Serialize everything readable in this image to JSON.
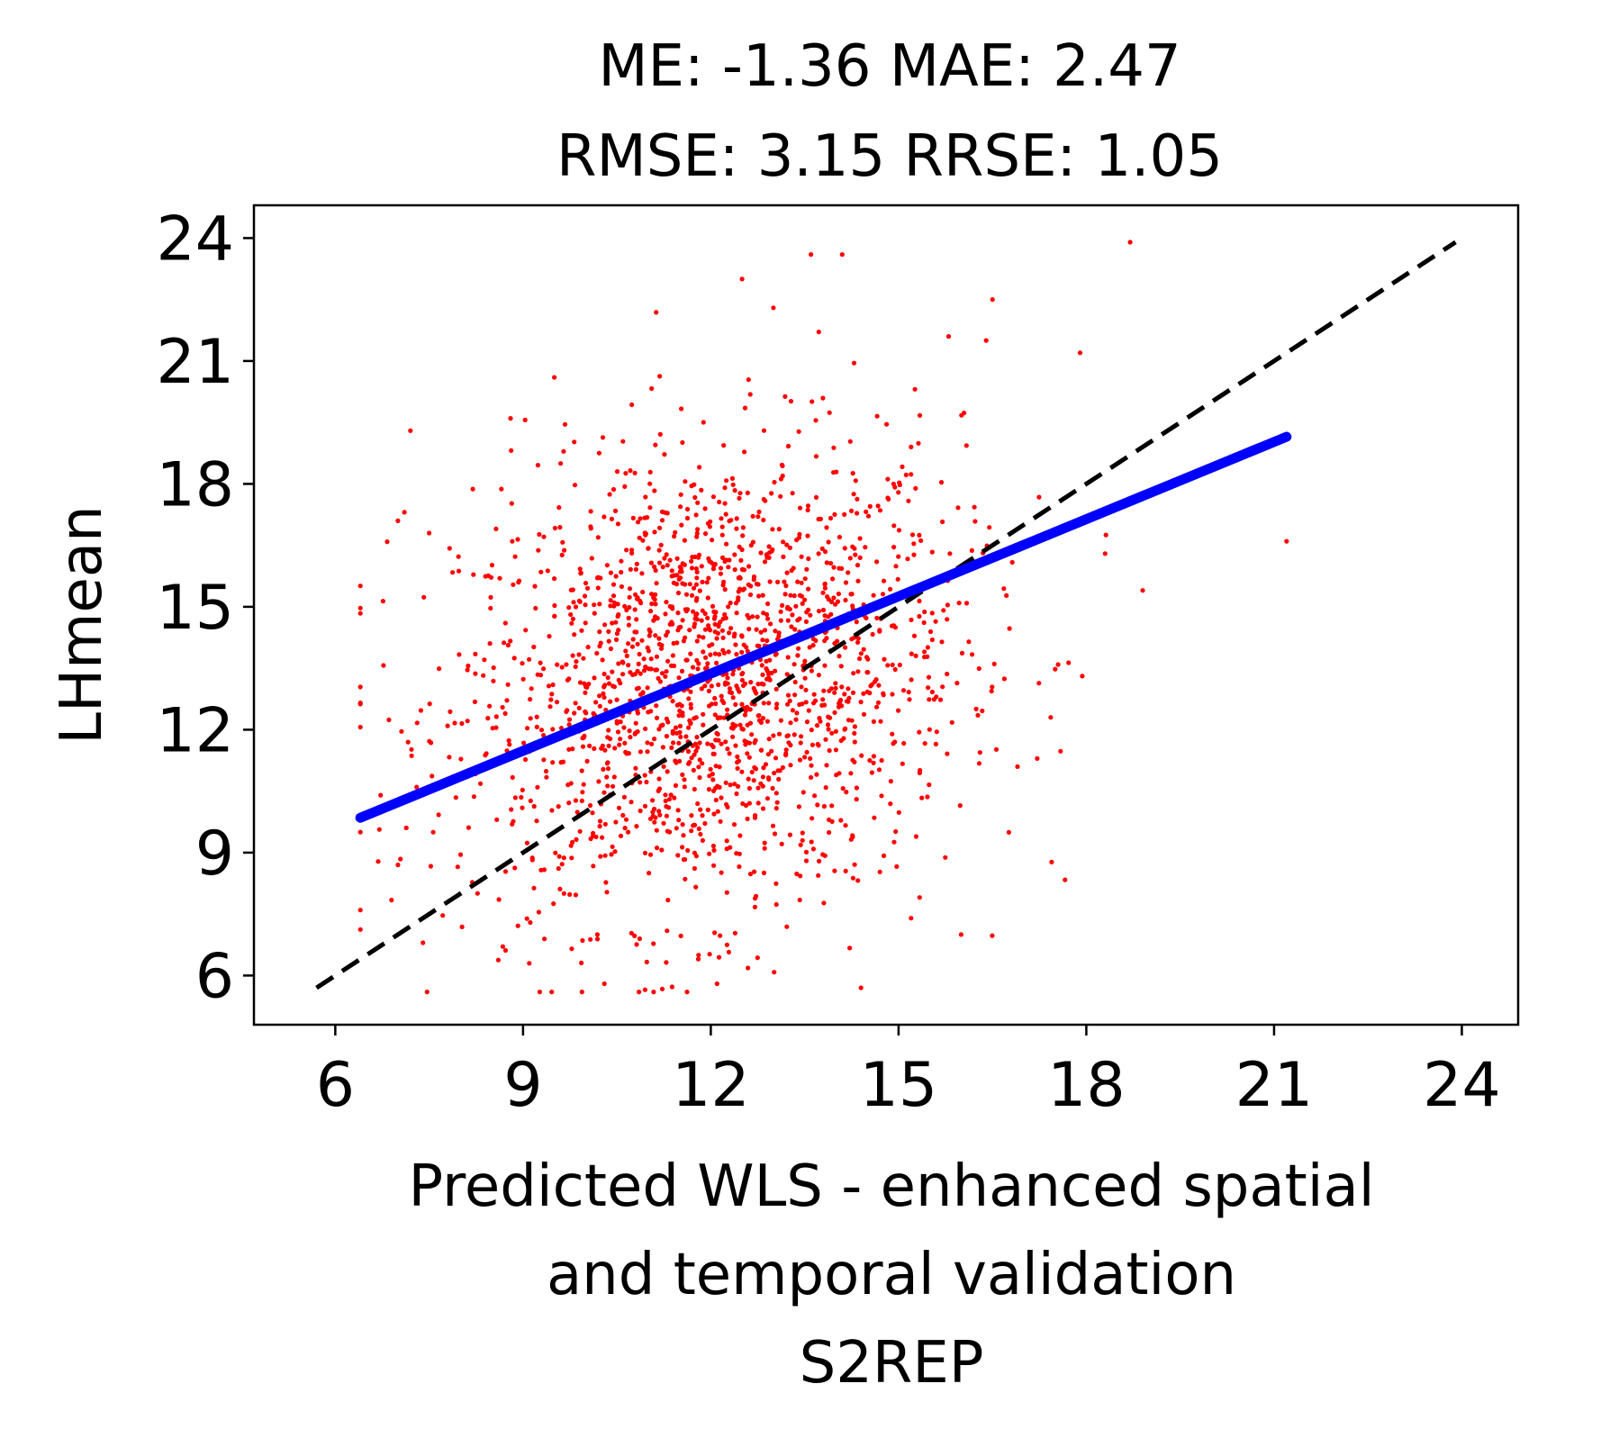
{
  "chart_data": {
    "type": "scatter",
    "title_lines": [
      "ME: -1.36 MAE: 2.47",
      "RMSE: 3.15 RRSE: 1.05"
    ],
    "xlabel_lines": [
      "Predicted WLS - enhanced spatial",
      "and temporal validation",
      "S2REP"
    ],
    "ylabel": "LHmean",
    "xlim": [
      4.7,
      24.9
    ],
    "ylim": [
      4.8,
      24.8
    ],
    "xticks": [
      6,
      9,
      12,
      15,
      18,
      21,
      24
    ],
    "yticks": [
      6,
      9,
      12,
      15,
      18,
      21,
      24
    ],
    "grid": false,
    "scatter": {
      "color": "#ff0000",
      "cluster_center": [
        12.0,
        13.2
      ],
      "cluster_spread": [
        2.0,
        2.8
      ],
      "n_points": 1800,
      "outliers": [
        [
          7.2,
          19.3
        ],
        [
          7.0,
          17.1
        ],
        [
          7.5,
          16.8
        ],
        [
          9.5,
          20.6
        ],
        [
          9.6,
          18.5
        ],
        [
          8.8,
          19.6
        ],
        [
          13.6,
          23.6
        ],
        [
          14.1,
          23.6
        ],
        [
          18.7,
          23.9
        ],
        [
          12.5,
          23.0
        ],
        [
          13.0,
          22.3
        ],
        [
          16.5,
          22.5
        ],
        [
          21.2,
          16.6
        ],
        [
          18.9,
          15.4
        ],
        [
          18.3,
          16.3
        ],
        [
          17.9,
          21.2
        ],
        [
          16.9,
          11.1
        ],
        [
          16.0,
          7.0
        ],
        [
          15.2,
          7.4
        ],
        [
          14.4,
          5.7
        ],
        [
          10.3,
          5.8
        ],
        [
          9.1,
          6.3
        ],
        [
          7.4,
          6.8
        ],
        [
          6.4,
          9.5
        ],
        [
          7.3,
          10.6
        ],
        [
          7.0,
          8.7
        ],
        [
          12.1,
          5.8
        ],
        [
          11.8,
          6.4
        ],
        [
          15.8,
          21.6
        ],
        [
          16.4,
          21.5
        ]
      ]
    },
    "series": [
      {
        "type": "fit",
        "color": "#0000ff",
        "x": [
          6.4,
          21.2
        ],
        "y": [
          9.85,
          19.15
        ]
      },
      {
        "type": "identity",
        "color": "#000000",
        "dashed": true,
        "x": [
          5.7,
          23.9
        ],
        "y": [
          5.7,
          23.9
        ]
      }
    ]
  }
}
